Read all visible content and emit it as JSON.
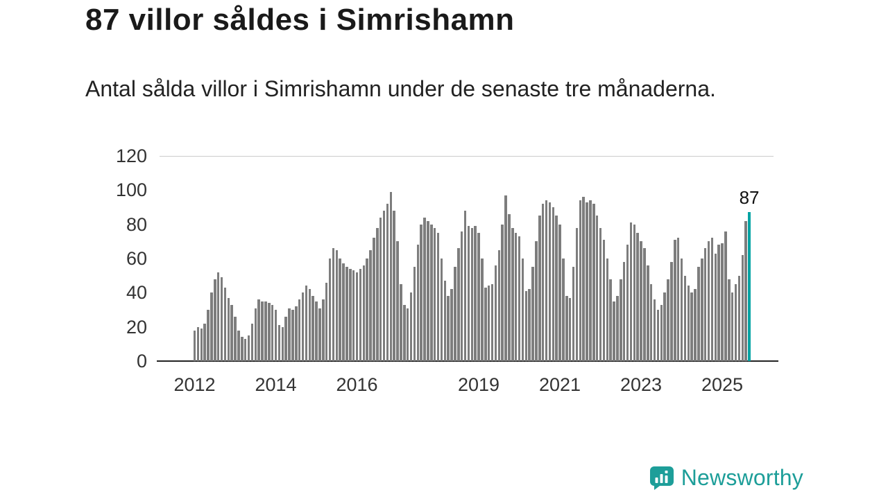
{
  "header": {
    "title": "87 villor såldes i Simrishamn",
    "subtitle": "Antal sålda villor i Simrishamn under de senaste tre månaderna."
  },
  "chart_data": {
    "type": "bar",
    "title": "87 villor såldes i Simrishamn",
    "subtitle": "Antal sålda villor i Simrishamn under de senaste tre månaderna.",
    "x_start": "2012-01",
    "x_interval": "month",
    "ylim": [
      0,
      120
    ],
    "yticks": [
      0,
      20,
      40,
      60,
      80,
      100,
      120
    ],
    "xtick_years": [
      2012,
      2014,
      2016,
      2019,
      2021,
      2023,
      2025
    ],
    "grid": "top-line-only",
    "legend": "none",
    "values": [
      18,
      20,
      19,
      22,
      30,
      40,
      48,
      52,
      49,
      43,
      37,
      33,
      26,
      18,
      14,
      13,
      15,
      22,
      31,
      36,
      35,
      35,
      34,
      33,
      30,
      21,
      20,
      26,
      31,
      30,
      32,
      36,
      40,
      44,
      42,
      38,
      35,
      31,
      36,
      46,
      60,
      66,
      65,
      60,
      57,
      55,
      54,
      53,
      52,
      54,
      56,
      60,
      65,
      72,
      78,
      84,
      88,
      92,
      99,
      88,
      70,
      45,
      33,
      31,
      40,
      55,
      68,
      80,
      84,
      82,
      80,
      78,
      75,
      60,
      47,
      38,
      42,
      55,
      66,
      76,
      88,
      79,
      78,
      79,
      75,
      60,
      43,
      44,
      45,
      56,
      65,
      80,
      97,
      86,
      78,
      75,
      73,
      60,
      41,
      42,
      55,
      70,
      85,
      92,
      94,
      93,
      90,
      85,
      80,
      60,
      38,
      37,
      55,
      78,
      94,
      96,
      93,
      94,
      92,
      85,
      78,
      71,
      60,
      48,
      35,
      38,
      48,
      58,
      68,
      81,
      80,
      75,
      70,
      66,
      56,
      45,
      36,
      30,
      33,
      40,
      48,
      58,
      71,
      72,
      60,
      50,
      44,
      40,
      42,
      55,
      60,
      66,
      70,
      72,
      63,
      68,
      69,
      76,
      48,
      40,
      45,
      50,
      62,
      82,
      87
    ],
    "highlight_index": 164,
    "highlight_label": "87"
  },
  "colors": {
    "bar": "#7d7d7d",
    "accent": "#00a3a3",
    "axis": "#222222",
    "tick_text": "#333333",
    "gridline": "#cccccc",
    "brand": "#1d9e99"
  },
  "brand": {
    "name": "Newsworthy"
  }
}
